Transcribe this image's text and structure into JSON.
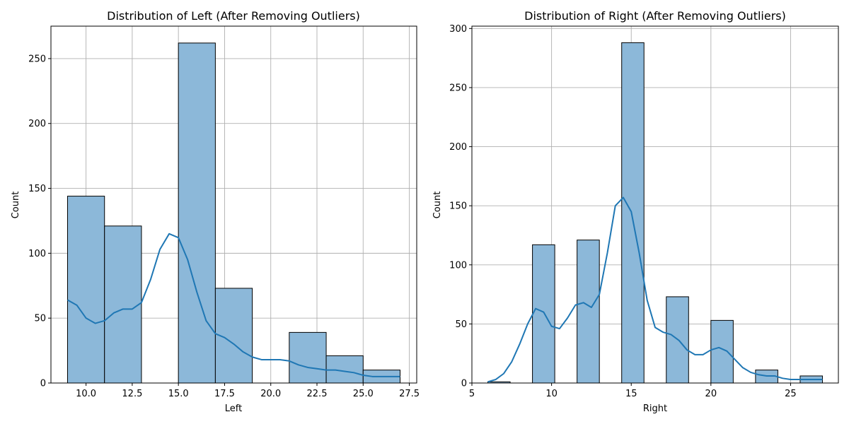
{
  "chart_data": [
    {
      "type": "bar",
      "title": "Distribution of Left (After Removing Outliers)",
      "xlabel": "Left",
      "ylabel": "Count",
      "xlim": [
        8.1,
        27.9
      ],
      "ylim": [
        0,
        275
      ],
      "xticks": [
        10.0,
        12.5,
        15.0,
        17.5,
        20.0,
        22.5,
        25.0,
        27.5
      ],
      "xtick_labels": [
        "10.0",
        "12.5",
        "15.0",
        "17.5",
        "20.0",
        "22.5",
        "25.0",
        "27.5"
      ],
      "yticks": [
        0,
        50,
        100,
        150,
        200,
        250
      ],
      "ytick_labels": [
        "0",
        "50",
        "100",
        "150",
        "200",
        "250"
      ],
      "grid": true,
      "bar_color": "#8cb8d9",
      "kde_color": "#1f77b4",
      "bins": [
        {
          "x0": 9.0,
          "x1": 11.0,
          "count": 144
        },
        {
          "x0": 11.0,
          "x1": 13.0,
          "count": 121
        },
        {
          "x0": 13.0,
          "x1": 15.0,
          "count": 0
        },
        {
          "x0": 15.0,
          "x1": 17.0,
          "count": 262
        },
        {
          "x0": 17.0,
          "x1": 19.0,
          "count": 73
        },
        {
          "x0": 19.0,
          "x1": 21.0,
          "count": 0
        },
        {
          "x0": 21.0,
          "x1": 23.0,
          "count": 39
        },
        {
          "x0": 23.0,
          "x1": 25.0,
          "count": 21
        },
        {
          "x0": 25.0,
          "x1": 27.0,
          "count": 10
        }
      ],
      "kde": {
        "x": [
          9.0,
          9.5,
          10.0,
          10.5,
          11.0,
          11.5,
          12.0,
          12.5,
          13.0,
          13.5,
          14.0,
          14.5,
          15.0,
          15.5,
          16.0,
          16.5,
          17.0,
          17.5,
          18.0,
          18.5,
          19.0,
          19.5,
          20.0,
          20.5,
          21.0,
          21.5,
          22.0,
          22.5,
          23.0,
          23.5,
          24.0,
          24.5,
          25.0,
          25.5,
          26.0,
          26.5,
          27.0
        ],
        "y": [
          64,
          60,
          50,
          46,
          48,
          54,
          57,
          57,
          62,
          80,
          103,
          115,
          112,
          95,
          70,
          48,
          38,
          35,
          30,
          24,
          20,
          18,
          18,
          18,
          17,
          14,
          12,
          11,
          10,
          10,
          9,
          8,
          6,
          5,
          5,
          5,
          5
        ]
      }
    },
    {
      "type": "bar",
      "title": "Distribution of Right (After Removing Outliers)",
      "xlabel": "Right",
      "ylabel": "Count",
      "xlim": [
        5.0,
        28.0
      ],
      "ylim": [
        0,
        302
      ],
      "xticks": [
        5,
        10,
        15,
        20,
        25
      ],
      "xtick_labels": [
        "5",
        "10",
        "15",
        "20",
        "25"
      ],
      "yticks": [
        0,
        50,
        100,
        150,
        200,
        250,
        300
      ],
      "ytick_labels": [
        "0",
        "50",
        "100",
        "150",
        "200",
        "250",
        "300"
      ],
      "grid": true,
      "bar_color": "#8cb8d9",
      "kde_color": "#1f77b4",
      "bins": [
        {
          "x0": 6.0,
          "x1": 7.4,
          "count": 1
        },
        {
          "x0": 7.4,
          "x1": 8.8,
          "count": 0
        },
        {
          "x0": 8.8,
          "x1": 10.2,
          "count": 117
        },
        {
          "x0": 10.2,
          "x1": 11.6,
          "count": 0
        },
        {
          "x0": 11.6,
          "x1": 13.0,
          "count": 121
        },
        {
          "x0": 13.0,
          "x1": 14.4,
          "count": 0
        },
        {
          "x0": 14.4,
          "x1": 15.8,
          "count": 288
        },
        {
          "x0": 15.8,
          "x1": 17.2,
          "count": 0
        },
        {
          "x0": 17.2,
          "x1": 18.6,
          "count": 73
        },
        {
          "x0": 18.6,
          "x1": 20.0,
          "count": 0
        },
        {
          "x0": 20.0,
          "x1": 21.4,
          "count": 53
        },
        {
          "x0": 21.4,
          "x1": 22.8,
          "count": 0
        },
        {
          "x0": 22.8,
          "x1": 24.2,
          "count": 11
        },
        {
          "x0": 24.2,
          "x1": 25.6,
          "count": 0
        },
        {
          "x0": 25.6,
          "x1": 27.0,
          "count": 6
        }
      ],
      "kde": {
        "x": [
          6.0,
          6.5,
          7.0,
          7.5,
          8.0,
          8.5,
          9.0,
          9.5,
          10.0,
          10.5,
          11.0,
          11.5,
          12.0,
          12.5,
          13.0,
          13.5,
          14.0,
          14.5,
          15.0,
          15.5,
          16.0,
          16.5,
          17.0,
          17.5,
          18.0,
          18.5,
          19.0,
          19.5,
          20.0,
          20.5,
          21.0,
          21.5,
          22.0,
          22.5,
          23.0,
          23.5,
          24.0,
          24.5,
          25.0,
          25.5,
          26.0,
          26.5,
          27.0
        ],
        "y": [
          1,
          3,
          8,
          18,
          33,
          50,
          63,
          60,
          48,
          46,
          55,
          66,
          68,
          64,
          75,
          110,
          150,
          157,
          145,
          110,
          70,
          47,
          43,
          41,
          36,
          28,
          24,
          24,
          28,
          30,
          27,
          20,
          13,
          9,
          7,
          6,
          6,
          4,
          3,
          3,
          3,
          3,
          3
        ]
      }
    }
  ]
}
